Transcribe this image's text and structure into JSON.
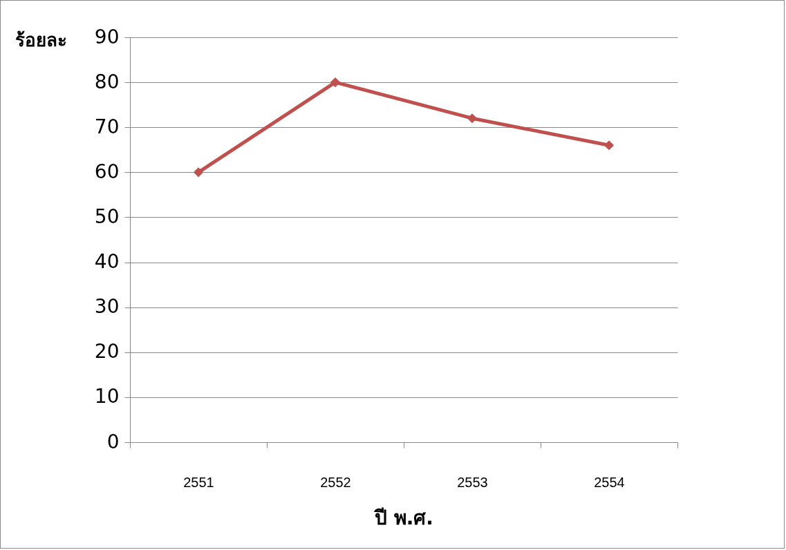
{
  "chart_data": {
    "type": "line",
    "xlabel": "ปี พ.ศ.",
    "ylabel": "ร้อยละ",
    "categories": [
      "2551",
      "2552",
      "2553",
      "2554"
    ],
    "series": [
      {
        "color": "#c0504d",
        "values": [
          60,
          80,
          72,
          66
        ]
      }
    ],
    "ylim": [
      0,
      90
    ],
    "yticks": [
      0,
      10,
      20,
      30,
      40,
      50,
      60,
      70,
      80,
      90
    ],
    "grid": "y",
    "marker": "diamond",
    "legend": false
  }
}
